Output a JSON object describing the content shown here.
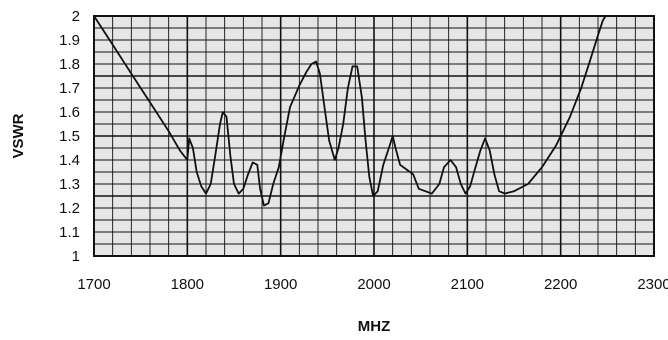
{
  "chart_data": {
    "type": "line",
    "title": "",
    "xlabel": "MHZ",
    "ylabel": "VSWR",
    "xlim": [
      1700,
      2300
    ],
    "ylim": [
      1,
      2
    ],
    "x_ticks": [
      "1700",
      "1800",
      "1900",
      "2000",
      "2100",
      "2200",
      "2300"
    ],
    "y_ticks": [
      "1",
      "1.1",
      "1.2",
      "1.3",
      "1.4",
      "1.5",
      "1.6",
      "1.7",
      "1.8",
      "1.9",
      "2"
    ],
    "grid": true,
    "plot_background": "#e6e6e6",
    "line_color": "#111111",
    "series": [
      {
        "name": "",
        "points": [
          [
            1700,
            2.0
          ],
          [
            1720,
            1.88
          ],
          [
            1740,
            1.76
          ],
          [
            1760,
            1.64
          ],
          [
            1780,
            1.52
          ],
          [
            1792,
            1.44
          ],
          [
            1800,
            1.4
          ],
          [
            1802,
            1.49
          ],
          [
            1806,
            1.45
          ],
          [
            1810,
            1.35
          ],
          [
            1815,
            1.29
          ],
          [
            1820,
            1.26
          ],
          [
            1825,
            1.3
          ],
          [
            1830,
            1.42
          ],
          [
            1835,
            1.55
          ],
          [
            1838,
            1.6
          ],
          [
            1842,
            1.58
          ],
          [
            1846,
            1.42
          ],
          [
            1850,
            1.3
          ],
          [
            1855,
            1.26
          ],
          [
            1860,
            1.28
          ],
          [
            1865,
            1.34
          ],
          [
            1870,
            1.39
          ],
          [
            1875,
            1.38
          ],
          [
            1878,
            1.28
          ],
          [
            1882,
            1.21
          ],
          [
            1887,
            1.22
          ],
          [
            1892,
            1.3
          ],
          [
            1898,
            1.37
          ],
          [
            1903,
            1.48
          ],
          [
            1910,
            1.62
          ],
          [
            1920,
            1.71
          ],
          [
            1928,
            1.77
          ],
          [
            1933,
            1.8
          ],
          [
            1938,
            1.81
          ],
          [
            1942,
            1.76
          ],
          [
            1947,
            1.62
          ],
          [
            1952,
            1.48
          ],
          [
            1958,
            1.4
          ],
          [
            1962,
            1.45
          ],
          [
            1967,
            1.55
          ],
          [
            1972,
            1.7
          ],
          [
            1977,
            1.79
          ],
          [
            1982,
            1.79
          ],
          [
            1987,
            1.66
          ],
          [
            1991,
            1.48
          ],
          [
            1995,
            1.33
          ],
          [
            1999,
            1.25
          ],
          [
            2004,
            1.27
          ],
          [
            2010,
            1.38
          ],
          [
            2016,
            1.45
          ],
          [
            2020,
            1.5
          ],
          [
            2023,
            1.45
          ],
          [
            2028,
            1.38
          ],
          [
            2035,
            1.36
          ],
          [
            2042,
            1.34
          ],
          [
            2048,
            1.28
          ],
          [
            2055,
            1.27
          ],
          [
            2062,
            1.26
          ],
          [
            2070,
            1.3
          ],
          [
            2075,
            1.37
          ],
          [
            2082,
            1.4
          ],
          [
            2088,
            1.37
          ],
          [
            2093,
            1.3
          ],
          [
            2098,
            1.26
          ],
          [
            2103,
            1.29
          ],
          [
            2108,
            1.36
          ],
          [
            2114,
            1.44
          ],
          [
            2119,
            1.49
          ],
          [
            2124,
            1.44
          ],
          [
            2129,
            1.34
          ],
          [
            2134,
            1.27
          ],
          [
            2140,
            1.26
          ],
          [
            2150,
            1.27
          ],
          [
            2165,
            1.3
          ],
          [
            2180,
            1.37
          ],
          [
            2195,
            1.46
          ],
          [
            2210,
            1.58
          ],
          [
            2222,
            1.7
          ],
          [
            2232,
            1.82
          ],
          [
            2240,
            1.92
          ],
          [
            2245,
            1.98
          ],
          [
            2248,
            2.0
          ]
        ]
      }
    ]
  }
}
